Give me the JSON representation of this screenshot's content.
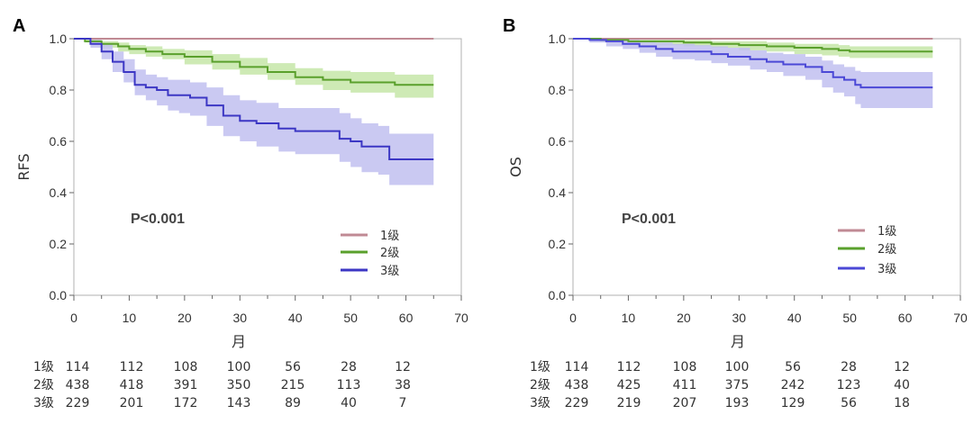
{
  "chart_data": [
    {
      "panel": "A",
      "type": "line",
      "ylabel": "RFS",
      "xlabel": "月",
      "xlim": [
        0,
        70
      ],
      "ylim": [
        0.0,
        1.0
      ],
      "xticks": [
        "0",
        "10",
        "20",
        "30",
        "40",
        "50",
        "60",
        "70"
      ],
      "yticks": [
        "0.0",
        "0.2",
        "0.4",
        "0.6",
        "0.8",
        "1.0"
      ],
      "annotation": "P<0.001",
      "legend_position": "lower-right",
      "series": [
        {
          "name": "1级",
          "color": "#c08a94",
          "band_color": "#e8c9cf",
          "x": [
            0,
            65
          ],
          "y": [
            1.0,
            1.0
          ],
          "lower": [
            1.0,
            1.0
          ],
          "upper": [
            1.0,
            1.0
          ]
        },
        {
          "name": "2级",
          "color": "#5aa02c",
          "band_color": "#c5e6a8",
          "x": [
            0,
            2,
            5,
            8,
            10,
            13,
            16,
            20,
            25,
            30,
            35,
            40,
            45,
            50,
            55,
            58,
            65
          ],
          "y": [
            1.0,
            0.99,
            0.98,
            0.97,
            0.96,
            0.95,
            0.94,
            0.93,
            0.91,
            0.89,
            0.87,
            0.85,
            0.84,
            0.83,
            0.83,
            0.82,
            0.82
          ],
          "lower": [
            1.0,
            0.985,
            0.965,
            0.95,
            0.94,
            0.93,
            0.92,
            0.9,
            0.88,
            0.86,
            0.84,
            0.82,
            0.8,
            0.79,
            0.79,
            0.77,
            0.77
          ],
          "upper": [
            1.0,
            0.995,
            0.99,
            0.985,
            0.975,
            0.97,
            0.96,
            0.955,
            0.94,
            0.925,
            0.905,
            0.885,
            0.875,
            0.87,
            0.87,
            0.86,
            0.86
          ]
        },
        {
          "name": "3级",
          "color": "#3c37c4",
          "band_color": "#c1bff0",
          "x": [
            0,
            3,
            5,
            7,
            9,
            11,
            13,
            15,
            17,
            19,
            21,
            24,
            27,
            30,
            33,
            37,
            40,
            43,
            46,
            48,
            50,
            52,
            55,
            57,
            58,
            65
          ],
          "y": [
            1.0,
            0.98,
            0.95,
            0.91,
            0.87,
            0.82,
            0.81,
            0.8,
            0.78,
            0.78,
            0.77,
            0.74,
            0.7,
            0.68,
            0.67,
            0.65,
            0.64,
            0.64,
            0.64,
            0.61,
            0.6,
            0.58,
            0.58,
            0.53,
            0.53,
            0.53
          ],
          "lower": [
            1.0,
            0.965,
            0.92,
            0.87,
            0.83,
            0.78,
            0.76,
            0.74,
            0.72,
            0.71,
            0.7,
            0.66,
            0.62,
            0.6,
            0.58,
            0.56,
            0.55,
            0.55,
            0.55,
            0.52,
            0.5,
            0.48,
            0.47,
            0.43,
            0.43,
            0.43
          ],
          "upper": [
            1.0,
            0.995,
            0.98,
            0.95,
            0.92,
            0.88,
            0.86,
            0.85,
            0.84,
            0.84,
            0.83,
            0.81,
            0.78,
            0.76,
            0.75,
            0.73,
            0.73,
            0.73,
            0.73,
            0.71,
            0.69,
            0.67,
            0.66,
            0.63,
            0.63,
            0.63
          ]
        }
      ],
      "risk_table": {
        "times": [
          "0",
          "10",
          "20",
          "30",
          "40",
          "50",
          "60"
        ],
        "rows": [
          {
            "label": "1级",
            "values": [
              "114",
              "112",
              "108",
              "100",
              "56",
              "28",
              "12"
            ]
          },
          {
            "label": "2级",
            "values": [
              "438",
              "418",
              "391",
              "350",
              "215",
              "113",
              "38"
            ]
          },
          {
            "label": "3级",
            "values": [
              "229",
              "201",
              "172",
              "143",
              "89",
              "40",
              "7"
            ]
          }
        ]
      }
    },
    {
      "panel": "B",
      "type": "line",
      "ylabel": "OS",
      "xlabel": "月",
      "xlim": [
        0,
        70
      ],
      "ylim": [
        0.0,
        1.0
      ],
      "xticks": [
        "0",
        "10",
        "20",
        "30",
        "40",
        "50",
        "60",
        "70"
      ],
      "yticks": [
        "0.0",
        "0.2",
        "0.4",
        "0.6",
        "0.8",
        "1.0"
      ],
      "annotation": "P<0.001",
      "legend_position": "lower-right",
      "series": [
        {
          "name": "1级",
          "color": "#c08a94",
          "band_color": "#e8c9cf",
          "x": [
            0,
            65
          ],
          "y": [
            1.0,
            1.0
          ],
          "lower": [
            1.0,
            1.0
          ],
          "upper": [
            1.0,
            1.0
          ]
        },
        {
          "name": "2级",
          "color": "#5aa02c",
          "band_color": "#c5e6a8",
          "x": [
            0,
            5,
            10,
            15,
            20,
            25,
            30,
            35,
            40,
            45,
            48,
            50,
            55,
            65
          ],
          "y": [
            1.0,
            0.995,
            0.99,
            0.99,
            0.985,
            0.98,
            0.975,
            0.97,
            0.965,
            0.96,
            0.955,
            0.95,
            0.95,
            0.95
          ],
          "lower": [
            1.0,
            0.99,
            0.98,
            0.975,
            0.97,
            0.965,
            0.955,
            0.95,
            0.94,
            0.935,
            0.93,
            0.925,
            0.925,
            0.925
          ],
          "upper": [
            1.0,
            1.0,
            0.995,
            0.995,
            0.995,
            0.99,
            0.99,
            0.985,
            0.98,
            0.98,
            0.975,
            0.97,
            0.97,
            0.97
          ]
        },
        {
          "name": "3级",
          "color": "#4b48d6",
          "band_color": "#c1bff0",
          "x": [
            0,
            3,
            6,
            9,
            12,
            15,
            18,
            22,
            25,
            28,
            32,
            35,
            38,
            42,
            45,
            47,
            49,
            51,
            52,
            65
          ],
          "y": [
            1.0,
            0.995,
            0.99,
            0.98,
            0.97,
            0.96,
            0.95,
            0.95,
            0.94,
            0.93,
            0.92,
            0.91,
            0.9,
            0.89,
            0.87,
            0.85,
            0.84,
            0.82,
            0.81,
            0.81
          ],
          "lower": [
            1.0,
            0.985,
            0.97,
            0.96,
            0.945,
            0.93,
            0.92,
            0.915,
            0.905,
            0.895,
            0.88,
            0.87,
            0.855,
            0.84,
            0.81,
            0.79,
            0.775,
            0.745,
            0.73,
            0.73
          ],
          "upper": [
            1.0,
            1.0,
            1.0,
            0.995,
            0.99,
            0.985,
            0.98,
            0.975,
            0.97,
            0.965,
            0.955,
            0.945,
            0.94,
            0.93,
            0.915,
            0.9,
            0.89,
            0.875,
            0.87,
            0.87
          ]
        }
      ],
      "risk_table": {
        "times": [
          "0",
          "10",
          "20",
          "30",
          "40",
          "50",
          "60"
        ],
        "rows": [
          {
            "label": "1级",
            "values": [
              "114",
              "112",
              "108",
              "100",
              "56",
              "28",
              "12"
            ]
          },
          {
            "label": "2级",
            "values": [
              "438",
              "425",
              "411",
              "375",
              "242",
              "123",
              "40"
            ]
          },
          {
            "label": "3级",
            "values": [
              "229",
              "219",
              "207",
              "193",
              "129",
              "56",
              "18"
            ]
          }
        ]
      }
    }
  ]
}
